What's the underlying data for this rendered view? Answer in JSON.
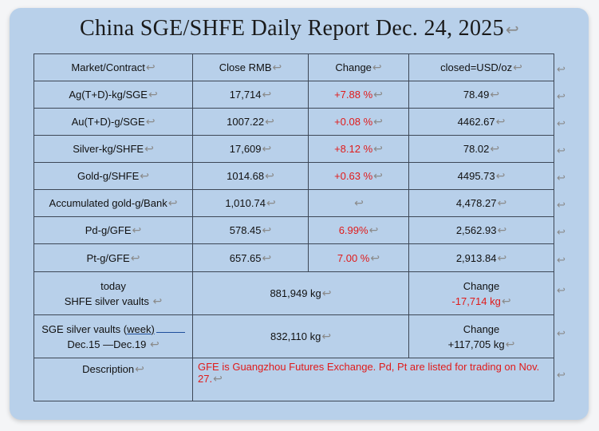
{
  "title": "China SGE/SHFE Daily Report Dec. 24, 2025",
  "return_mark": "↩",
  "columns": [
    "Market/Contract",
    "Close RMB",
    "Change",
    "closed=USD/oz"
  ],
  "rows": [
    {
      "market": "Ag(T+D)-kg/SGE",
      "close": "17,714",
      "change": "+7.88 %",
      "usd": "78.49"
    },
    {
      "market": "Au(T+D)-g/SGE",
      "close": "1007.22",
      "change": "+0.08 %",
      "usd": "4462.67"
    },
    {
      "market": "Silver-kg/SHFE",
      "close": "17,609",
      "change": "+8.12 %",
      "usd": "78.02"
    },
    {
      "market": "Gold-g/SHFE",
      "close": "1014.68",
      "change": "+0.63 %",
      "usd": "4495.73"
    },
    {
      "market": "Accumulated gold-g/Bank",
      "close": "1,010.74",
      "change": "",
      "usd": "4,478.27"
    },
    {
      "market": "Pd-g/GFE",
      "close": "578.45",
      "change": "6.99%",
      "usd": "2,562.93"
    },
    {
      "market": "Pt-g/GFE",
      "close": "657.65",
      "change": "7.00 %",
      "usd": "2,913.84"
    }
  ],
  "shfe_vault": {
    "label_line1": "today",
    "label_line2": "SHFE silver vaults",
    "value": "881,949 kg",
    "change_label": "Change",
    "change_value": "-17,714 kg"
  },
  "sge_vault": {
    "label_line1_prefix": "SGE silver vaults (",
    "label_line1_underlined": "week)",
    "label_line2": "Dec.15 —Dec.19",
    "value": "832,110 kg",
    "change_label": "Change",
    "change_value": "+117,705 kg"
  },
  "description": {
    "label": "Description",
    "text": "GFE is Guangzhou Futures Exchange. Pd, Pt are listed for trading on Nov. 27."
  },
  "colors": {
    "card": "#b8d0ea",
    "red": "#e01b1b",
    "border": "#3d4756"
  }
}
